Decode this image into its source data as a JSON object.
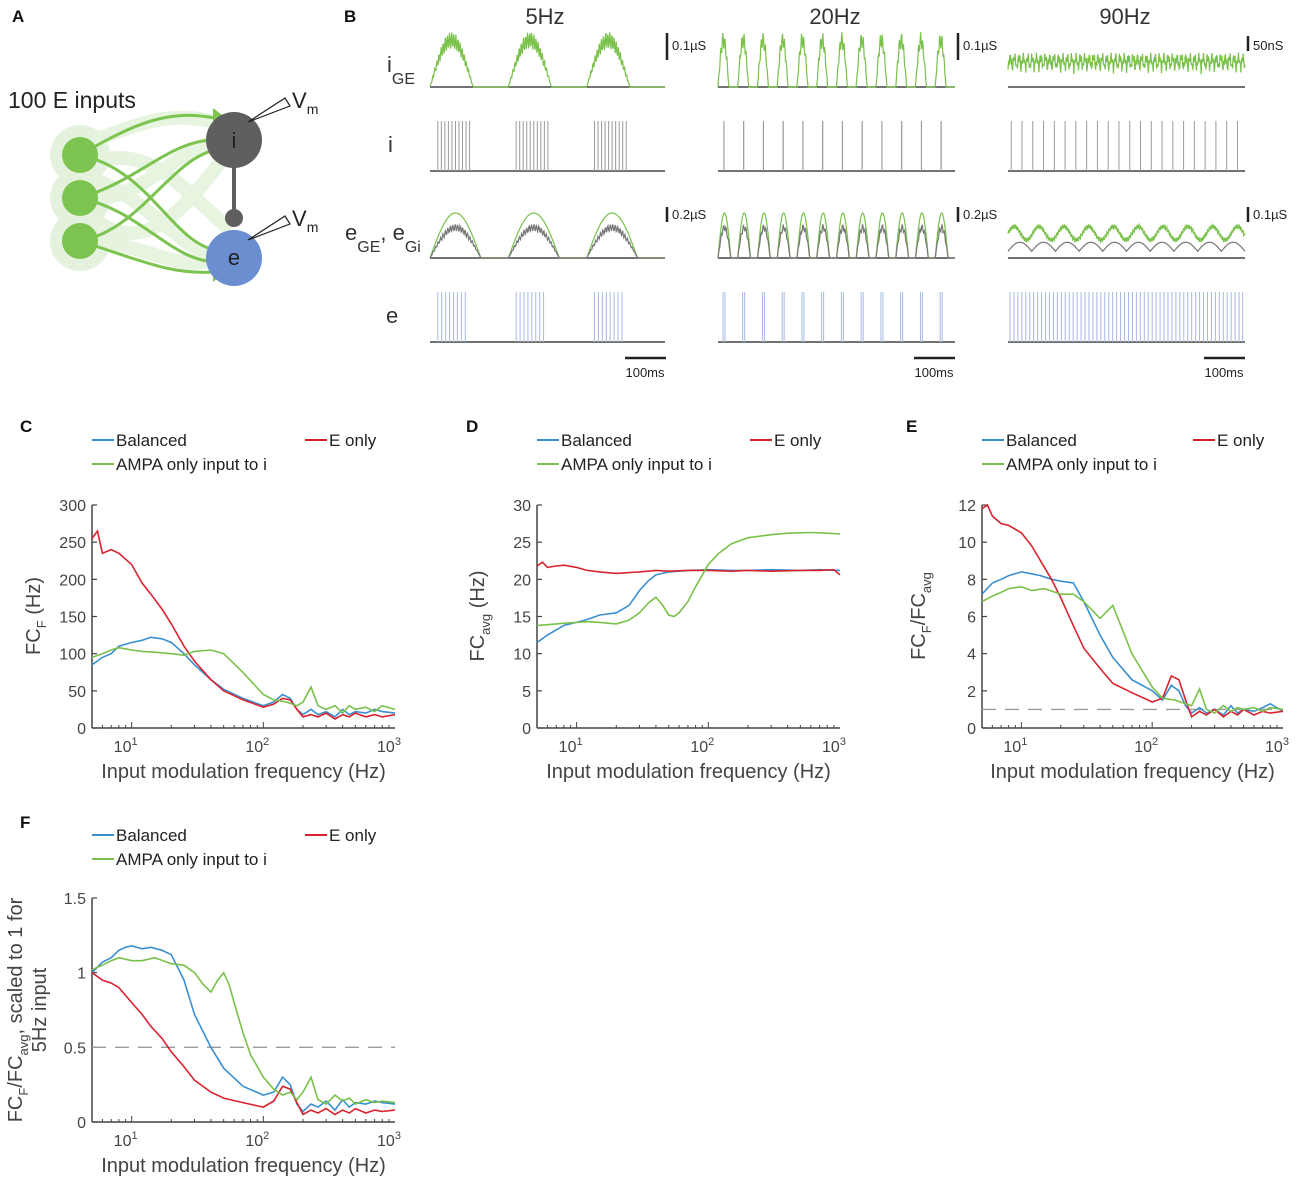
{
  "colors": {
    "balanced": "#3a8fd0",
    "e_only": "#d9232e",
    "ampa": "#79c14a",
    "green_node": "#7cc350",
    "grey_node": "#5f5f5f",
    "blue_node": "#6b8ed0",
    "trace_grey": "#9a9a9a",
    "trace_blue": "#a6b8e6",
    "dashed": "#9a9a9a"
  },
  "panel_a": {
    "label": "A",
    "inputs_label": "100 E inputs",
    "node_i": "i",
    "node_e": "e",
    "vm_main": "V",
    "vm_sub": "m"
  },
  "panel_b": {
    "label": "B",
    "freqs": [
      "5Hz",
      "20Hz",
      "90Hz"
    ],
    "row_labels": {
      "igE_main": "i",
      "igE_sub": "GE",
      "i": "i",
      "eg_main1": "e",
      "eg_sub1": "GE",
      "eg_comma": ", e",
      "eg_sub2": "Gi",
      "e": "e"
    },
    "scalebars_row1": [
      "0.1µS",
      "0.1µS",
      "50nS"
    ],
    "scalebars_row3": [
      "0.2µS",
      "0.2µS",
      "0.1µS"
    ],
    "time_scale": "100ms"
  },
  "chart_data": [
    {
      "panel": "C",
      "type": "line",
      "xscale": "log",
      "xlim": [
        5,
        1000
      ],
      "ylim": [
        0,
        300
      ],
      "yticks": [
        0,
        50,
        100,
        150,
        200,
        250,
        300
      ],
      "xticks": [
        "10",
        "10",
        "10"
      ],
      "xtick_exps": [
        "1",
        "2",
        "3"
      ],
      "xlabel": "Input modulation frequency (Hz)",
      "ylabel_main": "FC",
      "ylabel_sub": "F",
      "ylabel_tail": " (Hz)",
      "legend": [
        "Balanced",
        "E only",
        "AMPA only input to i"
      ],
      "series": [
        {
          "name": "Balanced",
          "key": "balanced",
          "x": [
            5,
            6,
            7,
            8,
            10,
            12,
            14,
            17,
            20,
            25,
            30,
            40,
            50,
            70,
            100,
            120,
            140,
            160,
            180,
            200,
            230,
            260,
            300,
            350,
            400,
            450,
            500,
            600,
            700,
            800,
            1000
          ],
          "values": [
            85,
            95,
            100,
            110,
            115,
            118,
            122,
            120,
            115,
            100,
            85,
            65,
            52,
            40,
            30,
            35,
            45,
            40,
            25,
            18,
            25,
            18,
            22,
            15,
            25,
            18,
            22,
            20,
            25,
            22,
            20
          ]
        },
        {
          "name": "E only",
          "key": "e_only",
          "x": [
            5,
            5.5,
            6,
            7,
            8,
            10,
            12,
            14,
            17,
            20,
            25,
            30,
            40,
            50,
            70,
            100,
            120,
            140,
            160,
            180,
            200,
            230,
            260,
            300,
            350,
            400,
            450,
            500,
            600,
            700,
            800,
            1000
          ],
          "values": [
            255,
            265,
            235,
            240,
            235,
            220,
            195,
            180,
            160,
            140,
            110,
            90,
            65,
            50,
            38,
            28,
            32,
            40,
            38,
            25,
            15,
            18,
            15,
            20,
            12,
            18,
            15,
            20,
            15,
            18,
            15,
            18
          ]
        },
        {
          "name": "AMPA only input to i",
          "key": "ampa",
          "x": [
            5,
            6,
            7,
            8,
            10,
            12,
            15,
            20,
            25,
            30,
            40,
            50,
            70,
            100,
            120,
            150,
            180,
            200,
            230,
            260,
            300,
            350,
            400,
            450,
            500,
            600,
            700,
            800,
            1000
          ],
          "values": [
            95,
            100,
            105,
            108,
            105,
            103,
            102,
            100,
            98,
            103,
            105,
            100,
            75,
            45,
            38,
            35,
            30,
            35,
            55,
            30,
            25,
            30,
            20,
            30,
            25,
            28,
            22,
            30,
            25
          ]
        }
      ]
    },
    {
      "panel": "D",
      "type": "line",
      "xscale": "log",
      "xlim": [
        5,
        1000
      ],
      "ylim": [
        0,
        30
      ],
      "yticks": [
        0,
        5,
        10,
        15,
        20,
        25,
        30
      ],
      "xticks": [
        "10",
        "10",
        "10"
      ],
      "xtick_exps": [
        "1",
        "2",
        "3"
      ],
      "xlabel": "Input modulation frequency (Hz)",
      "ylabel_main": "FC",
      "ylabel_sub": "avg",
      "ylabel_tail": " (Hz)",
      "legend": [
        "Balanced",
        "E only",
        "AMPA only input to i"
      ],
      "series": [
        {
          "name": "Balanced",
          "key": "balanced",
          "x": [
            5,
            6,
            7,
            8,
            10,
            12,
            15,
            20,
            25,
            30,
            35,
            40,
            50,
            70,
            100,
            150,
            200,
            300,
            500,
            700,
            1000
          ],
          "values": [
            11.5,
            12.5,
            13.2,
            13.8,
            14.2,
            14.6,
            15.2,
            15.5,
            16.5,
            18.5,
            19.8,
            20.6,
            21.0,
            21.2,
            21.3,
            21.2,
            21.2,
            21.3,
            21.2,
            21.3,
            21.2
          ]
        },
        {
          "name": "E only",
          "key": "e_only",
          "x": [
            5,
            5.5,
            6,
            7,
            8,
            10,
            12,
            15,
            20,
            25,
            30,
            40,
            50,
            70,
            100,
            150,
            200,
            300,
            500,
            700,
            900,
            1000
          ],
          "values": [
            21.8,
            22.3,
            21.6,
            21.8,
            21.9,
            21.6,
            21.2,
            21.0,
            20.8,
            20.9,
            21.0,
            21.2,
            21.1,
            21.2,
            21.2,
            21.1,
            21.2,
            21.1,
            21.2,
            21.2,
            21.3,
            20.6
          ]
        },
        {
          "name": "AMPA only input to i",
          "key": "ampa",
          "x": [
            5,
            6,
            7,
            8,
            10,
            12,
            15,
            20,
            25,
            30,
            35,
            40,
            45,
            50,
            55,
            60,
            70,
            80,
            100,
            120,
            150,
            200,
            300,
            400,
            600,
            800,
            1000
          ],
          "values": [
            13.8,
            13.9,
            14.0,
            14.1,
            14.2,
            14.3,
            14.2,
            14.0,
            14.5,
            15.5,
            16.8,
            17.6,
            16.5,
            15.2,
            15.0,
            15.5,
            17.0,
            19.0,
            22.0,
            23.5,
            24.8,
            25.6,
            26.0,
            26.2,
            26.3,
            26.2,
            26.1
          ]
        }
      ]
    },
    {
      "panel": "E",
      "type": "line",
      "xscale": "log",
      "xlim": [
        5,
        1000
      ],
      "ylim": [
        0,
        12
      ],
      "yticks": [
        0,
        2,
        4,
        6,
        8,
        10,
        12
      ],
      "xticks": [
        "10",
        "10",
        "10"
      ],
      "xtick_exps": [
        "1",
        "2",
        "3"
      ],
      "xlabel": "Input modulation frequency (Hz)",
      "ylabel_main": "FC",
      "ylabel_sub": "F",
      "ylabel_tail": "/FC",
      "ylabel_sub2": "avg",
      "reference_line": 1,
      "legend": [
        "Balanced",
        "E only",
        "AMPA only input to i"
      ],
      "series": [
        {
          "name": "Balanced",
          "key": "balanced",
          "x": [
            5,
            6,
            7,
            8,
            10,
            12,
            14,
            17,
            20,
            25,
            30,
            40,
            50,
            70,
            100,
            120,
            140,
            160,
            180,
            200,
            230,
            260,
            300,
            350,
            400,
            450,
            500,
            600,
            700,
            800,
            1000
          ],
          "values": [
            7.2,
            7.8,
            8.0,
            8.2,
            8.4,
            8.3,
            8.2,
            8.0,
            7.9,
            7.8,
            6.8,
            5.0,
            3.8,
            2.6,
            2.0,
            1.5,
            2.3,
            2.0,
            1.2,
            0.8,
            1.1,
            0.8,
            1.0,
            0.7,
            1.2,
            0.8,
            1.0,
            0.9,
            1.1,
            1.3,
            0.9
          ]
        },
        {
          "name": "E only",
          "key": "e_only",
          "x": [
            5,
            5.5,
            6,
            7,
            8,
            10,
            12,
            14,
            17,
            20,
            25,
            30,
            40,
            50,
            70,
            100,
            120,
            140,
            160,
            180,
            200,
            230,
            260,
            300,
            350,
            400,
            450,
            500,
            600,
            700,
            800,
            1000
          ],
          "values": [
            11.8,
            12.0,
            11.4,
            11.0,
            10.9,
            10.5,
            9.8,
            9.0,
            8.0,
            7.0,
            5.5,
            4.3,
            3.2,
            2.4,
            1.9,
            1.4,
            1.6,
            2.8,
            2.6,
            1.5,
            0.6,
            0.9,
            0.7,
            1.0,
            0.6,
            0.9,
            0.7,
            1.0,
            0.7,
            0.9,
            0.8,
            0.9
          ]
        },
        {
          "name": "AMPA only input to i",
          "key": "ampa",
          "x": [
            5,
            6,
            7,
            8,
            10,
            12,
            15,
            20,
            25,
            30,
            40,
            50,
            70,
            100,
            120,
            150,
            180,
            200,
            230,
            260,
            300,
            350,
            400,
            450,
            500,
            600,
            700,
            800,
            1000
          ],
          "values": [
            6.8,
            7.1,
            7.3,
            7.5,
            7.6,
            7.4,
            7.5,
            7.2,
            7.2,
            6.8,
            5.9,
            6.6,
            4.0,
            2.2,
            1.6,
            1.5,
            1.3,
            1.2,
            2.1,
            1.0,
            0.8,
            1.2,
            0.9,
            1.1,
            1.0,
            1.1,
            0.9,
            1.1,
            1.0
          ]
        }
      ]
    },
    {
      "panel": "F",
      "type": "line",
      "xscale": "log",
      "xlim": [
        5,
        1000
      ],
      "ylim": [
        0,
        1.5
      ],
      "yticks": [
        0,
        0.5,
        1,
        1.5
      ],
      "ytick_labels": [
        "0",
        "0.5",
        "1",
        "1.5"
      ],
      "xticks": [
        "10",
        "10",
        "10"
      ],
      "xtick_exps": [
        "1",
        "2",
        "3"
      ],
      "xlabel": "Input modulation frequency (Hz)",
      "ylabel_main": "FC",
      "ylabel_sub": "F",
      "ylabel_tail": "/FC",
      "ylabel_sub2": "avg",
      "ylabel_tail2": ", scaled to 1 for",
      "ylabel_line2": "5Hz input",
      "reference_line": 0.5,
      "legend": [
        "Balanced",
        "E only",
        "AMPA only input to i"
      ],
      "series": [
        {
          "name": "Balanced",
          "key": "balanced",
          "x": [
            5,
            6,
            7,
            8,
            9,
            10,
            12,
            14,
            17,
            20,
            25,
            30,
            40,
            50,
            70,
            100,
            120,
            140,
            160,
            180,
            200,
            230,
            260,
            300,
            350,
            400,
            450,
            500,
            600,
            700,
            800,
            1000
          ],
          "values": [
            1.0,
            1.07,
            1.1,
            1.15,
            1.17,
            1.18,
            1.16,
            1.17,
            1.15,
            1.12,
            0.95,
            0.72,
            0.5,
            0.36,
            0.24,
            0.18,
            0.2,
            0.3,
            0.25,
            0.12,
            0.07,
            0.12,
            0.1,
            0.14,
            0.08,
            0.15,
            0.1,
            0.13,
            0.12,
            0.14,
            0.13,
            0.12
          ]
        },
        {
          "name": "E only",
          "key": "e_only",
          "x": [
            5,
            6,
            7,
            8,
            10,
            12,
            14,
            17,
            20,
            25,
            30,
            40,
            50,
            70,
            100,
            120,
            140,
            160,
            180,
            200,
            230,
            260,
            300,
            350,
            400,
            450,
            500,
            600,
            700,
            800,
            1000
          ],
          "values": [
            1.0,
            0.95,
            0.93,
            0.9,
            0.8,
            0.72,
            0.64,
            0.56,
            0.47,
            0.37,
            0.28,
            0.2,
            0.16,
            0.13,
            0.1,
            0.14,
            0.24,
            0.22,
            0.13,
            0.05,
            0.08,
            0.06,
            0.09,
            0.05,
            0.08,
            0.06,
            0.09,
            0.06,
            0.08,
            0.07,
            0.08
          ]
        },
        {
          "name": "AMPA only input to i",
          "key": "ampa",
          "x": [
            5,
            6,
            7,
            8,
            10,
            12,
            15,
            20,
            25,
            30,
            35,
            40,
            45,
            50,
            55,
            60,
            70,
            80,
            100,
            120,
            140,
            160,
            180,
            200,
            230,
            260,
            300,
            350,
            400,
            450,
            500,
            600,
            700,
            800,
            1000
          ],
          "values": [
            1.02,
            1.05,
            1.08,
            1.1,
            1.08,
            1.08,
            1.1,
            1.06,
            1.05,
            1.0,
            0.92,
            0.87,
            0.95,
            1.0,
            0.92,
            0.8,
            0.6,
            0.45,
            0.3,
            0.22,
            0.18,
            0.2,
            0.15,
            0.2,
            0.3,
            0.15,
            0.12,
            0.18,
            0.14,
            0.16,
            0.12,
            0.15,
            0.13,
            0.14,
            0.13
          ]
        }
      ]
    }
  ]
}
